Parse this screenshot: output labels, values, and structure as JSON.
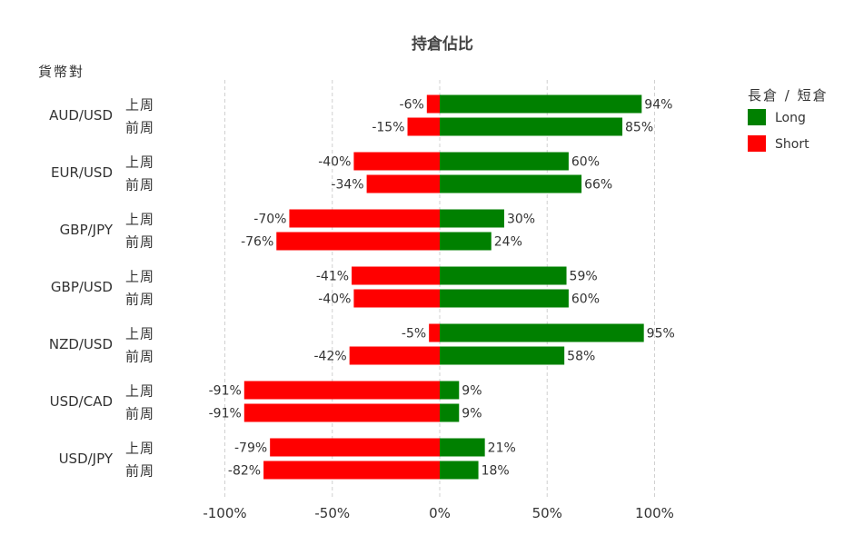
{
  "colors": {
    "long": "#008000",
    "short": "#ff0000",
    "grid": "#d0d0d0"
  },
  "chart_data": {
    "type": "bar",
    "orientation": "horizontal",
    "stacked": "diverging",
    "title": "持倉佔比",
    "ylabel": "貨幣對",
    "xlim": [
      -100,
      100
    ],
    "xticks": [
      -100,
      -50,
      0,
      50,
      100
    ],
    "xtick_labels": [
      "-100%",
      "-50%",
      "0%",
      "50%",
      "100%"
    ],
    "grid": "vertical dashed",
    "legend": {
      "title": "長倉 / 短倉",
      "position": "top-right",
      "entries": [
        "Long",
        "Short"
      ]
    },
    "period_labels": [
      "上周",
      "前周"
    ],
    "categories": [
      "AUD/USD",
      "EUR/USD",
      "GBP/JPY",
      "GBP/USD",
      "NZD/USD",
      "USD/CAD",
      "USD/JPY"
    ],
    "series": [
      {
        "name": "Long",
        "values": [
          [
            94,
            85
          ],
          [
            60,
            66
          ],
          [
            30,
            24
          ],
          [
            59,
            60
          ],
          [
            95,
            58
          ],
          [
            9,
            9
          ],
          [
            21,
            18
          ]
        ]
      },
      {
        "name": "Short",
        "values": [
          [
            -6,
            -15
          ],
          [
            -40,
            -34
          ],
          [
            -70,
            -76
          ],
          [
            -41,
            -40
          ],
          [
            -5,
            -42
          ],
          [
            -91,
            -91
          ],
          [
            -79,
            -82
          ]
        ]
      }
    ]
  }
}
